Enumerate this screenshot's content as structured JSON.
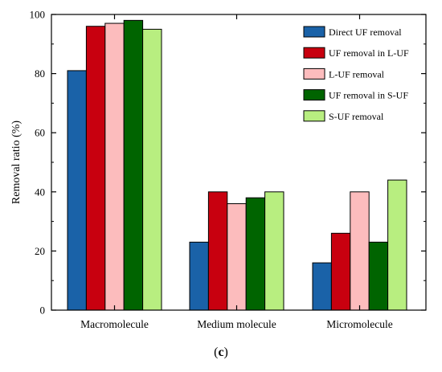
{
  "chart_data": {
    "type": "bar",
    "ylabel": "Removal ratio (%)",
    "xlabel": "",
    "ylim": [
      0,
      100
    ],
    "yticks": [
      0,
      20,
      40,
      60,
      80,
      100
    ],
    "categories": [
      "Macromolecule",
      "Medium molecule",
      "Micromolecule"
    ],
    "series": [
      {
        "name": "Direct UF removal",
        "color": "#1a62a8",
        "values": [
          81,
          23,
          16
        ]
      },
      {
        "name": "UF removal in L-UF",
        "color": "#c8000f",
        "values": [
          96,
          40,
          26
        ]
      },
      {
        "name": "L-UF removal",
        "color": "#fcbcbd",
        "values": [
          97,
          36,
          40
        ]
      },
      {
        "name": "UF removal in S-UF",
        "color": "#006400",
        "values": [
          98,
          38,
          23
        ]
      },
      {
        "name": "S-UF removal",
        "color": "#b8ee80",
        "values": [
          95,
          40,
          44
        ]
      }
    ],
    "legend": {
      "position": "top-right"
    },
    "grid": false
  },
  "caption": {
    "open": "(",
    "letter": "c",
    "close": ")"
  }
}
